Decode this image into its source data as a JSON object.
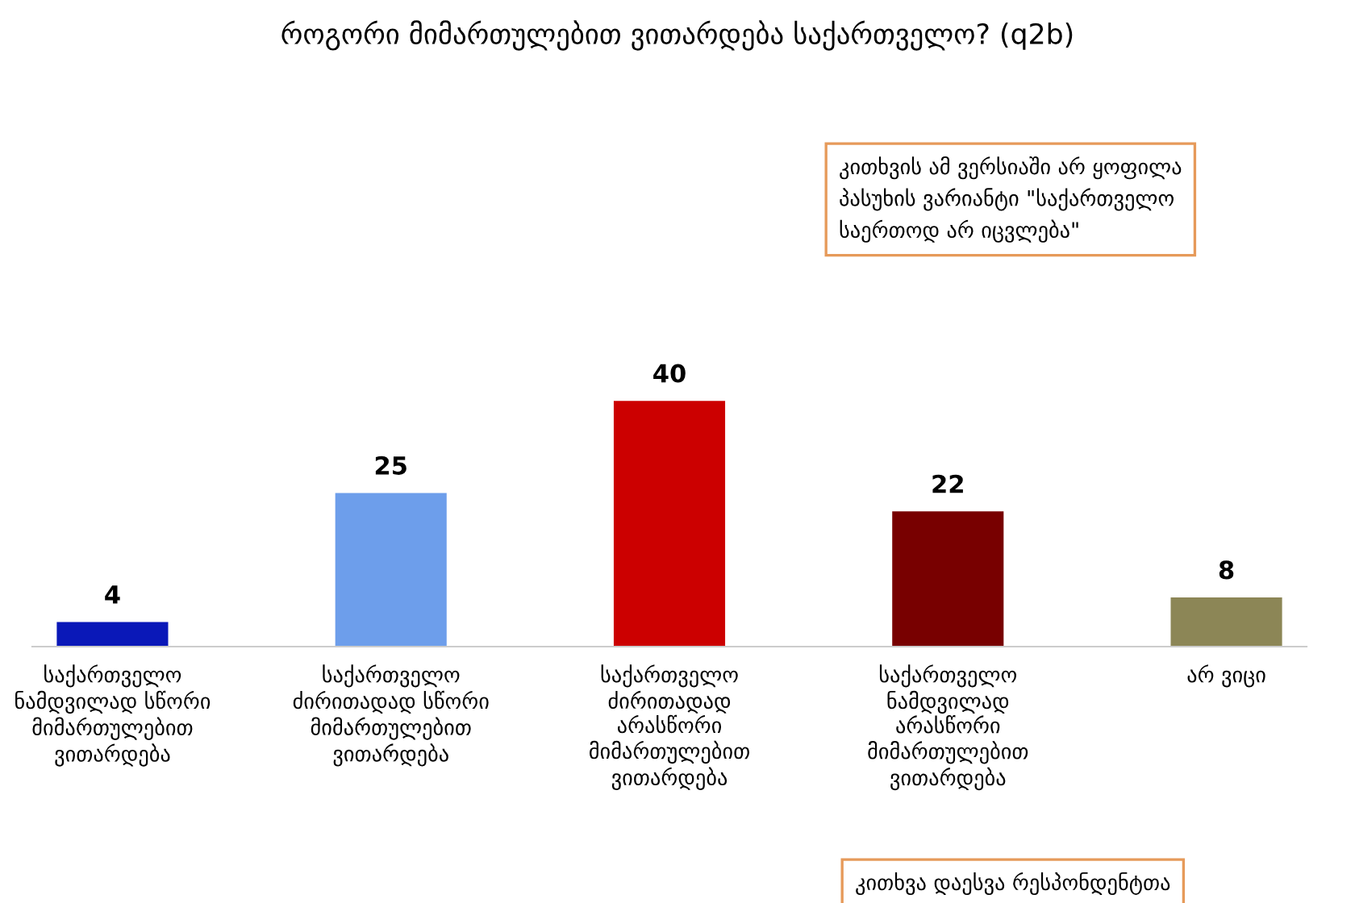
{
  "chart_data": {
    "type": "bar",
    "title": "როგორი მიმართულებით ვითარდება საქართველო? (q2b)",
    "categories": [
      "საქართველო\nნამდვილად სწორი\nმიმართულებით\nვითარდება",
      "საქართველო\nძირითადად სწორი\nმიმართულებით\nვითარდება",
      "საქართველო\nძირითადად\nარასწორი\nმიმართულებით\nვითარდება",
      "საქართველო\nნამდვილად\nარასწორი\nმიმართულებით\nვითარდება",
      "არ ვიცი"
    ],
    "values": [
      4,
      25,
      40,
      22,
      8
    ],
    "colors": [
      "#0a18b8",
      "#6d9eeb",
      "#cc0000",
      "#780000",
      "#8c8656"
    ],
    "data_labels": true,
    "grid": false,
    "legend": false,
    "annotations": [
      "კითხვის ამ ვერსიაში არ ყოფილა\nპასუხის ვარიანტი \"საქართველო\nსაერთოდ არ იცვლება\"",
      "კითხვა დაესვა რესპონდენტთა"
    ]
  }
}
